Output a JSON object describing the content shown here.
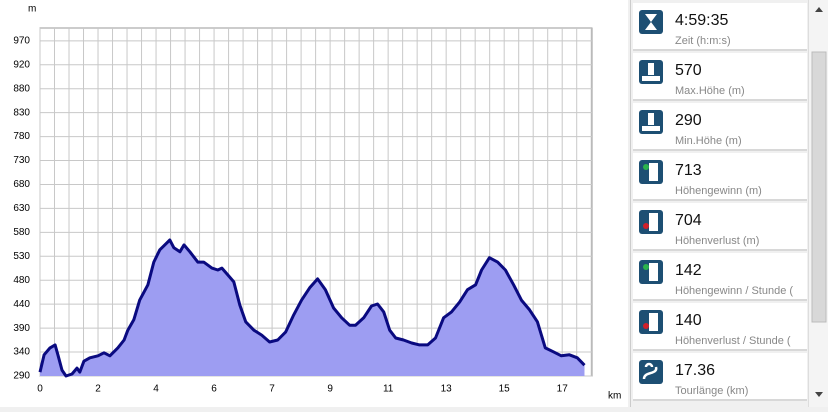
{
  "chart_data": {
    "type": "area",
    "xlabel": "km",
    "ylabel": "m",
    "x": [
      0,
      0.13,
      0.32,
      0.48,
      0.57,
      0.7,
      0.83,
      1.02,
      1.18,
      1.27,
      1.4,
      1.59,
      1.85,
      2.04,
      2.23,
      2.48,
      2.68,
      2.8,
      2.99,
      3.18,
      3.44,
      3.63,
      3.82,
      4.01,
      4.14,
      4.27,
      4.46,
      4.59,
      4.78,
      5.03,
      5.22,
      5.48,
      5.67,
      5.8,
      5.99,
      6.18,
      6.37,
      6.56,
      6.82,
      7.07,
      7.32,
      7.58,
      7.83,
      8.09,
      8.34,
      8.6,
      8.85,
      9.1,
      9.36,
      9.62,
      9.87,
      10.06,
      10.32,
      10.57,
      10.76,
      10.96,
      11.15,
      11.34,
      11.59,
      11.85,
      12.1,
      12.36,
      12.61,
      12.87,
      13.12,
      13.38,
      13.63,
      13.89,
      14.08,
      14.33,
      14.59,
      14.84,
      15.1,
      15.35,
      15.61,
      15.86,
      16.11,
      16.37,
      16.62,
      16.88,
      17.13,
      17.36
    ],
    "values": [
      298,
      333,
      347,
      353,
      333,
      302,
      290,
      294,
      306,
      298,
      320,
      327,
      331,
      337,
      331,
      347,
      363,
      383,
      404,
      444,
      475,
      521,
      546,
      558,
      566,
      550,
      542,
      556,
      542,
      521,
      521,
      509,
      505,
      509,
      495,
      481,
      434,
      400,
      383,
      373,
      359,
      363,
      379,
      414,
      444,
      469,
      487,
      465,
      428,
      408,
      393,
      393,
      408,
      432,
      436,
      420,
      383,
      367,
      363,
      357,
      353,
      353,
      367,
      408,
      420,
      440,
      465,
      475,
      505,
      530,
      521,
      505,
      475,
      444,
      424,
      400,
      347,
      339,
      331,
      333,
      327,
      312
    ],
    "line_color": "#0a0a80",
    "fill_color": "#9d9df2",
    "grid": true,
    "xlim": [
      0,
      17.6
    ],
    "xticks": [
      0,
      {
        "value": 1.85,
        "label": "2"
      },
      {
        "value": 3.7,
        "label": "4"
      },
      {
        "value": 5.55,
        "label": "6"
      },
      {
        "value": 7.4,
        "label": "7"
      },
      {
        "value": 9.25,
        "label": "9"
      },
      {
        "value": 11.1,
        "label": "11"
      },
      {
        "value": 12.95,
        "label": "13"
      },
      {
        "value": 14.8,
        "label": "15"
      },
      {
        "value": 16.65,
        "label": "17"
      }
    ],
    "ylim": [
      290,
      996
    ],
    "yticks": [
      290,
      {
        "value": 338.57,
        "label": "340"
      },
      {
        "value": 387.14,
        "label": "390"
      },
      {
        "value": 435.71,
        "label": "440"
      },
      {
        "value": 484.29,
        "label": "480"
      },
      {
        "value": 532.86,
        "label": "530"
      },
      {
        "value": 581.43,
        "label": "580"
      },
      630,
      {
        "value": 678.57,
        "label": "680"
      },
      {
        "value": 727.14,
        "label": "730"
      },
      {
        "value": 775.71,
        "label": "780"
      },
      {
        "value": 824.29,
        "label": "830"
      },
      {
        "value": 872.86,
        "label": "880"
      },
      {
        "value": 921.43,
        "label": "920"
      },
      970
    ]
  },
  "stats": [
    {
      "value": "4:59:35",
      "label": "Zeit (h:m:s)"
    },
    {
      "value": "570",
      "label": "Max.Höhe (m)"
    },
    {
      "value": "290",
      "label": "Min.Höhe (m)"
    },
    {
      "value": "713",
      "label": "Höhengewinn (m)"
    },
    {
      "value": "704",
      "label": "Höhenverlust (m)"
    },
    {
      "value": "142",
      "label": "Höhengewinn  / Stunde ("
    },
    {
      "value": "140",
      "label": "Höhenverlust / Stunde ("
    },
    {
      "value": "17.36",
      "label": "Tourlänge (km)"
    }
  ]
}
